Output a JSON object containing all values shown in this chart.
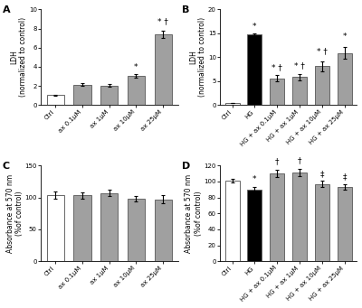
{
  "panel_A": {
    "categories": [
      "Ctrl",
      "ax 0.1μM",
      "ax 1μM",
      "ax 10μM",
      "ax 25μM"
    ],
    "values": [
      1.05,
      2.15,
      2.05,
      3.05,
      7.4
    ],
    "errors": [
      0.06,
      0.12,
      0.12,
      0.18,
      0.38
    ],
    "colors": [
      "white",
      "#a0a0a0",
      "#a0a0a0",
      "#a0a0a0",
      "#a0a0a0"
    ],
    "ylabel": "LDH\n(normalized to control)",
    "ylim": [
      0,
      10
    ],
    "yticks": [
      0,
      2,
      4,
      6,
      8,
      10
    ],
    "annotations": [
      "",
      "",
      "",
      "*",
      "* †"
    ],
    "annot_offsets": [
      0,
      0,
      0,
      0.3,
      0.5
    ],
    "label": "A"
  },
  "panel_B": {
    "categories": [
      "Ctrl",
      "HG",
      "HG + ax 0.1μM",
      "HG + ax 1μM",
      "HG + ax 10μM",
      "HG + ax 25μM"
    ],
    "values": [
      0.45,
      14.8,
      5.6,
      5.85,
      8.1,
      10.9
    ],
    "errors": [
      0.05,
      0.25,
      0.62,
      0.65,
      1.05,
      1.2
    ],
    "colors": [
      "white",
      "black",
      "#a0a0a0",
      "#a0a0a0",
      "#a0a0a0",
      "#a0a0a0"
    ],
    "ylabel": "LDH\n(normalized to control)",
    "ylim": [
      0,
      20
    ],
    "yticks": [
      0,
      5,
      10,
      15,
      20
    ],
    "annotations": [
      "",
      "*",
      "* †",
      "* †",
      "* †",
      "*"
    ],
    "annot_offsets": [
      0,
      0.4,
      0.8,
      0.8,
      1.3,
      1.4
    ],
    "label": "B"
  },
  "panel_C": {
    "categories": [
      "Ctrl",
      "ax 0.1μM",
      "ax 1μM",
      "ax 10μM",
      "ax 25μM"
    ],
    "values": [
      104,
      103,
      107,
      98,
      97
    ],
    "errors": [
      5.5,
      4.5,
      5,
      4.5,
      6.5
    ],
    "colors": [
      "white",
      "#a0a0a0",
      "#a0a0a0",
      "#a0a0a0",
      "#a0a0a0"
    ],
    "ylabel": "Absorbance at 570 nm\n(%of control)",
    "ylim": [
      0,
      150
    ],
    "yticks": [
      0,
      50,
      100,
      150
    ],
    "annotations": [
      "",
      "",
      "",
      "",
      ""
    ],
    "annot_offsets": [
      0,
      0,
      0,
      0,
      0
    ],
    "label": "C"
  },
  "panel_D": {
    "categories": [
      "Ctrl",
      "HG",
      "HG + ax 0.1μM",
      "HG + ax 1μM",
      "HG + ax 10μM",
      "HG + ax 25μM"
    ],
    "values": [
      101,
      90,
      110,
      111,
      97,
      93
    ],
    "errors": [
      2.5,
      3.5,
      4.5,
      4.5,
      3.5,
      3.5
    ],
    "colors": [
      "white",
      "black",
      "#a0a0a0",
      "#a0a0a0",
      "#a0a0a0",
      "#a0a0a0"
    ],
    "ylabel": "Absorbance at 570 nm\n(%of control)",
    "ylim": [
      0,
      120
    ],
    "yticks": [
      0,
      20,
      40,
      60,
      80,
      100,
      120
    ],
    "annotations": [
      "",
      "*",
      "†",
      "†",
      "‡",
      "‡"
    ],
    "annot_offsets": [
      0,
      4,
      5,
      5,
      4,
      4
    ],
    "label": "D"
  },
  "bar_edgecolor": "#666666",
  "bar_linewidth": 0.7,
  "errorbar_color": "black",
  "errorbar_linewidth": 0.8,
  "tick_fontsize": 5.0,
  "label_fontsize": 5.5,
  "annot_fontsize": 6.5,
  "panel_label_fontsize": 8
}
